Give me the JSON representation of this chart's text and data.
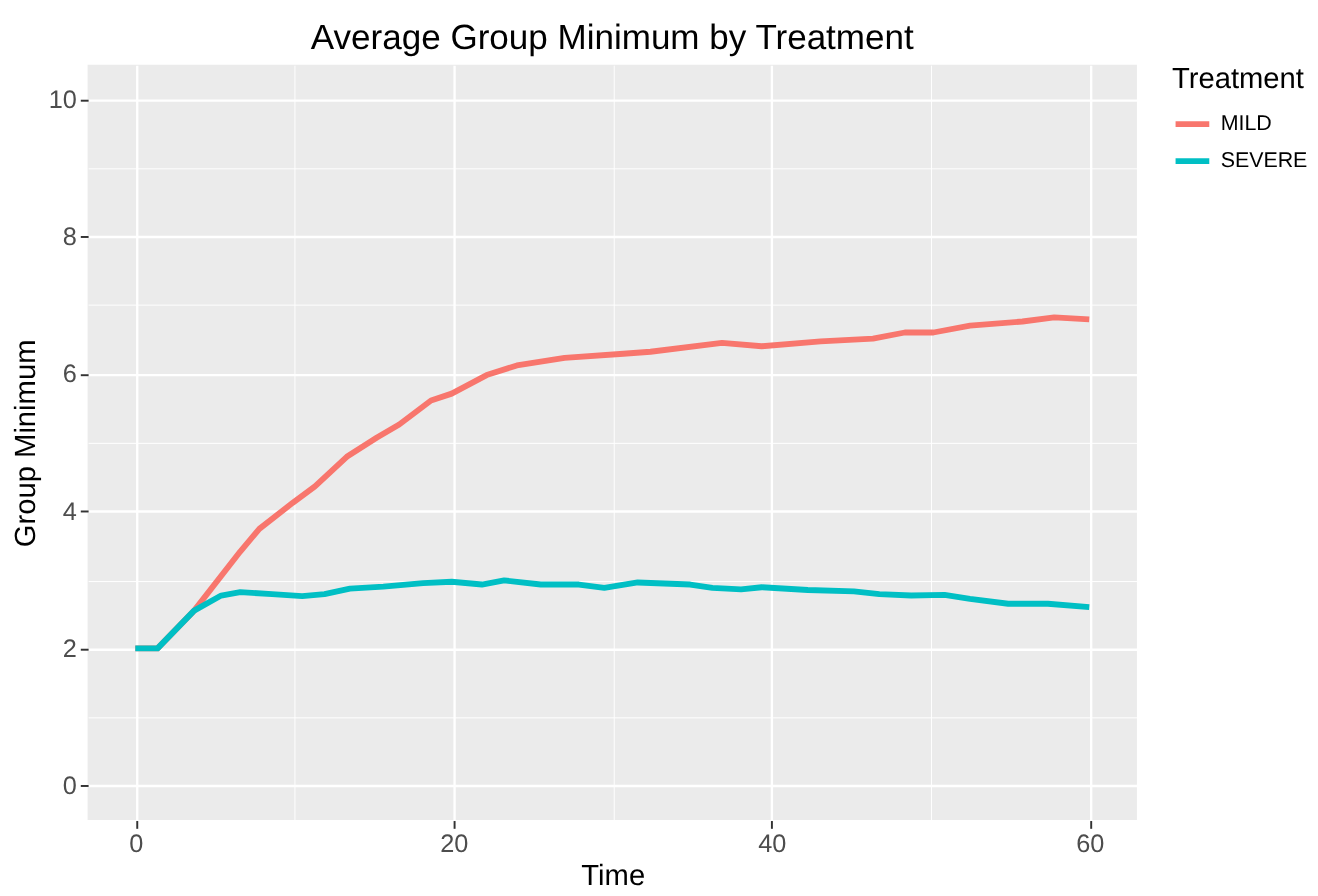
{
  "chart_data": {
    "type": "line",
    "title": "Average Group Minimum by Treatment",
    "xlabel": "Time",
    "ylabel": "Group Minimum",
    "legend_title": "Treatment",
    "legend": "right",
    "grid": true,
    "line_style": "solid",
    "marker": "none",
    "xlim": [
      -3,
      63
    ],
    "ylim": [
      -0.5,
      10.5
    ],
    "xticks": [
      0,
      {
        "value": 10,
        "label": null
      },
      20,
      {
        "value": 30,
        "label": null
      },
      40,
      {
        "value": 50,
        "label": null
      },
      60
    ],
    "yticks": [
      0,
      {
        "value": 1,
        "label": null
      },
      2,
      {
        "value": 3,
        "label": null
      },
      4,
      {
        "value": 5,
        "label": null
      },
      6,
      {
        "value": 7,
        "label": null
      },
      8,
      {
        "value": 9,
        "label": null
      },
      10
    ],
    "series": [
      {
        "name": "MILD",
        "color": "#f8766d",
        "x": [
          0,
          1.4,
          3.7,
          6.6,
          7.8,
          9.9,
          11.3,
          13.3,
          15.2,
          16.6,
          18.6,
          19.9,
          22.1,
          24,
          27,
          30.7,
          32.4,
          36.9,
          39.4,
          43.1,
          46.4,
          48.4,
          50.2,
          52.5,
          55.8,
          57.8,
          60
        ],
        "values": [
          2.0,
          2.0,
          2.55,
          3.41,
          3.74,
          4.12,
          4.36,
          4.79,
          5.07,
          5.26,
          5.61,
          5.71,
          5.98,
          6.12,
          6.23,
          6.29,
          6.32,
          6.45,
          6.4,
          6.47,
          6.51,
          6.6,
          6.6,
          6.7,
          6.76,
          6.82,
          6.79
        ]
      },
      {
        "name": "SEVERE",
        "color": "#00bfc4",
        "x": [
          0,
          1.4,
          3.7,
          5.4,
          6.6,
          8.6,
          10.5,
          11.9,
          13.5,
          15.6,
          18.1,
          19.9,
          21.8,
          23.2,
          25.5,
          27.9,
          29.5,
          31.6,
          34.9,
          36.3,
          38.1,
          39.4,
          42.3,
          45.2,
          46.8,
          48.8,
          50.9,
          52.5,
          54.9,
          57.4,
          60
        ],
        "values": [
          2.0,
          2.0,
          2.55,
          2.77,
          2.82,
          2.79,
          2.76,
          2.79,
          2.87,
          2.9,
          2.95,
          2.97,
          2.93,
          2.99,
          2.93,
          2.93,
          2.88,
          2.96,
          2.93,
          2.88,
          2.86,
          2.89,
          2.85,
          2.83,
          2.79,
          2.77,
          2.78,
          2.72,
          2.65,
          2.65,
          2.6
        ]
      }
    ]
  }
}
